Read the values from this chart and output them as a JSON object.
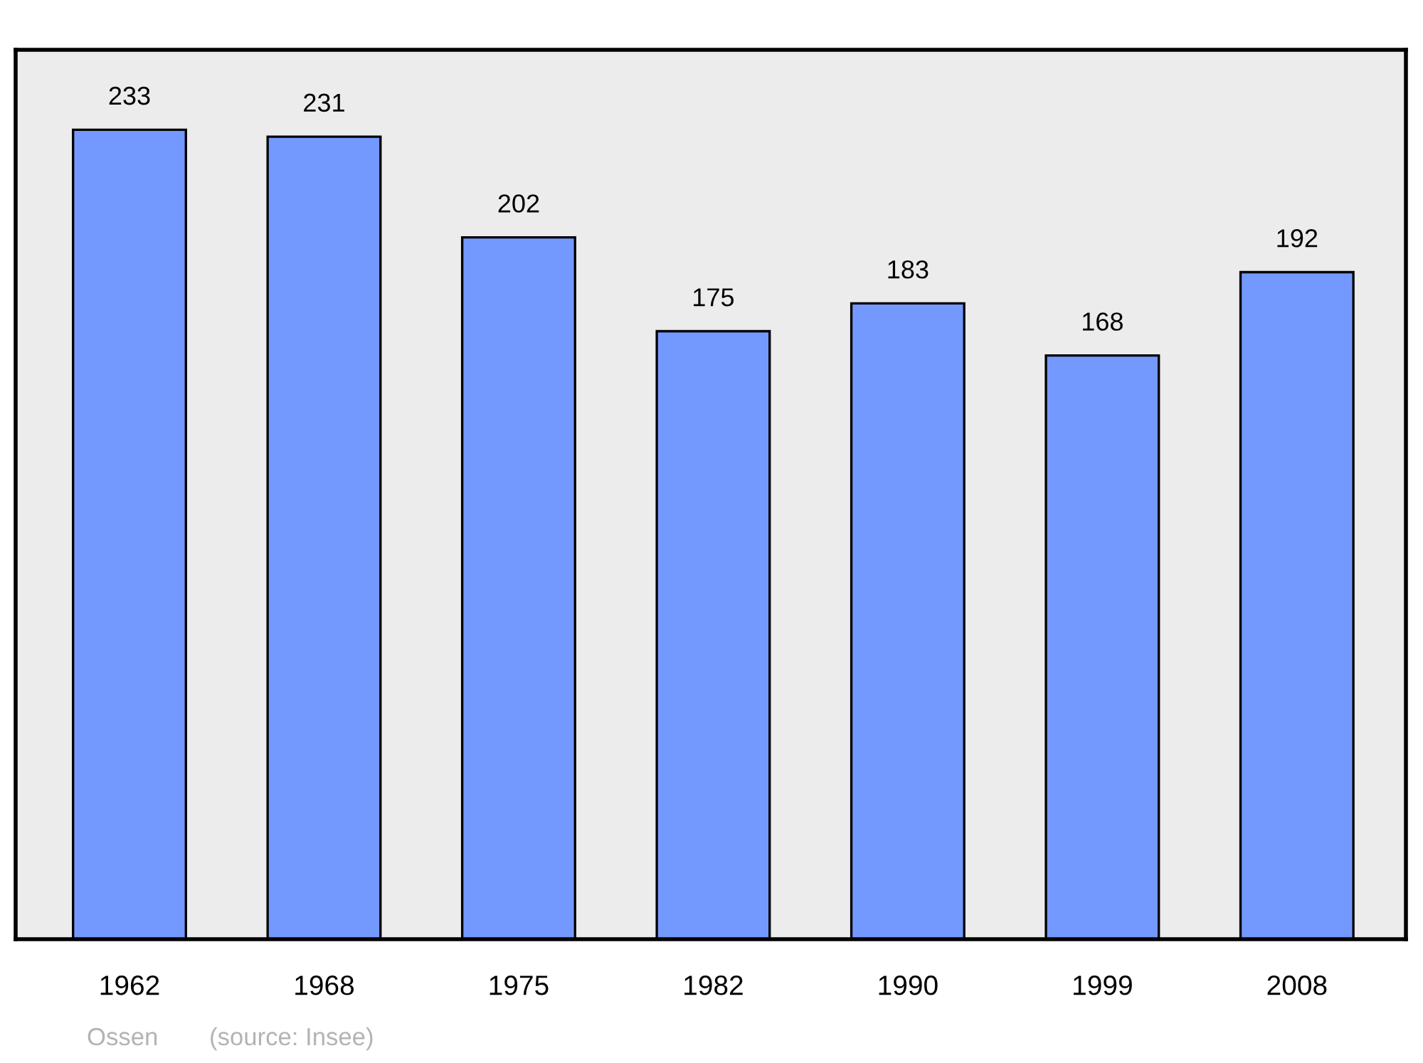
{
  "chart_data": {
    "type": "bar",
    "categories": [
      "1962",
      "1968",
      "1975",
      "1982",
      "1990",
      "1999",
      "2008"
    ],
    "values": [
      233,
      231,
      202,
      175,
      183,
      168,
      192
    ],
    "color": "#7399ff",
    "ylim": [
      0,
      256
    ],
    "data_labels": true,
    "grid": false,
    "legend": false,
    "tick_labels": "x",
    "annotations": [
      "Ossen",
      "(source: Insee)"
    ]
  }
}
